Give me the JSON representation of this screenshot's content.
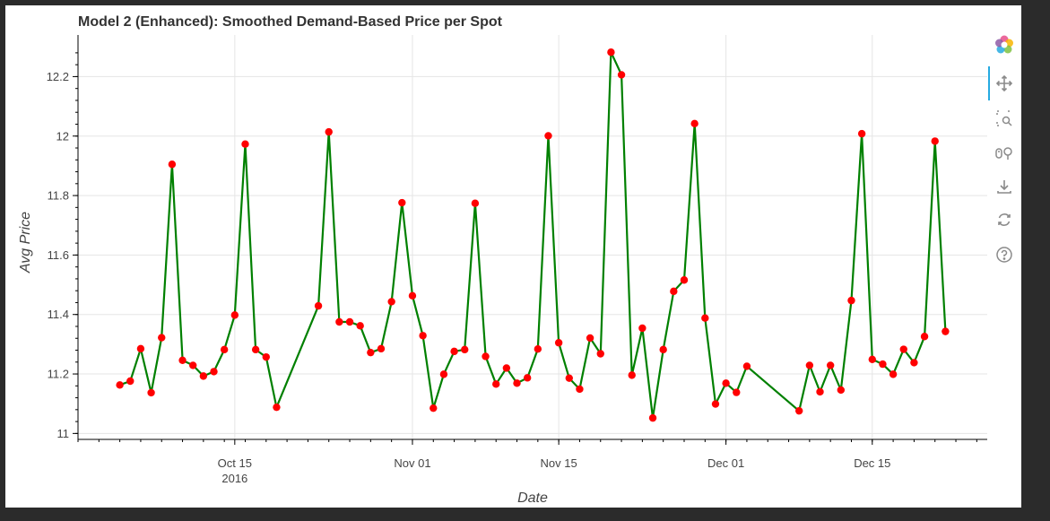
{
  "chart_data": {
    "type": "line",
    "title": "Model 2 (Enhanced): Smoothed Demand-Based Price per Spot",
    "xlabel": "Date",
    "ylabel": "Avg Price",
    "x_axis_type": "datetime",
    "xlim": [
      "2016-09-30",
      "2016-12-26"
    ],
    "ylim": [
      10.98,
      12.34
    ],
    "x_ticks": [
      {
        "date": "2016-10-15",
        "label": "Oct 15",
        "sublabel": "2016"
      },
      {
        "date": "2016-11-01",
        "label": "Nov 01",
        "sublabel": ""
      },
      {
        "date": "2016-11-15",
        "label": "Nov 15",
        "sublabel": ""
      },
      {
        "date": "2016-12-01",
        "label": "Dec 01",
        "sublabel": ""
      },
      {
        "date": "2016-12-15",
        "label": "Dec 15",
        "sublabel": ""
      }
    ],
    "y_ticks": [
      {
        "value": 11,
        "label": "11"
      },
      {
        "value": 11.2,
        "label": "11.2"
      },
      {
        "value": 11.4,
        "label": "11.4"
      },
      {
        "value": 11.6,
        "label": "11.6"
      },
      {
        "value": 11.8,
        "label": "11.8"
      },
      {
        "value": 12,
        "label": "12"
      },
      {
        "value": 12.2,
        "label": "12.2"
      }
    ],
    "grid": true,
    "line_color": "#008000",
    "marker_color": "#ff0000",
    "series": [
      {
        "points": [
          [
            "2016-10-04",
            11.163
          ],
          [
            "2016-10-05",
            11.176
          ],
          [
            "2016-10-06",
            11.285
          ],
          [
            "2016-10-07",
            11.137
          ],
          [
            "2016-10-08",
            11.322
          ],
          [
            "2016-10-09",
            11.905
          ],
          [
            "2016-10-10",
            11.246
          ],
          [
            "2016-10-11",
            11.229
          ],
          [
            "2016-10-12",
            11.193
          ],
          [
            "2016-10-13",
            11.208
          ],
          [
            "2016-10-14",
            11.282
          ],
          [
            "2016-10-15",
            11.398
          ],
          [
            "2016-10-16",
            11.973
          ],
          [
            "2016-10-17",
            11.282
          ],
          [
            "2016-10-18",
            11.257
          ],
          [
            "2016-10-19",
            11.088
          ],
          [
            "2016-10-23",
            11.429
          ],
          [
            "2016-10-24",
            12.014
          ],
          [
            "2016-10-25",
            11.375
          ],
          [
            "2016-10-26",
            11.375
          ],
          [
            "2016-10-27",
            11.362
          ],
          [
            "2016-10-28",
            11.272
          ],
          [
            "2016-10-29",
            11.285
          ],
          [
            "2016-10-30",
            11.443
          ],
          [
            "2016-10-31",
            11.776
          ],
          [
            "2016-11-01",
            11.463
          ],
          [
            "2016-11-02",
            11.329
          ],
          [
            "2016-11-03",
            11.085
          ],
          [
            "2016-11-04",
            11.199
          ],
          [
            "2016-11-05",
            11.276
          ],
          [
            "2016-11-06",
            11.282
          ],
          [
            "2016-11-07",
            11.774
          ],
          [
            "2016-11-08",
            11.259
          ],
          [
            "2016-11-09",
            11.166
          ],
          [
            "2016-11-10",
            11.22
          ],
          [
            "2016-11-11",
            11.169
          ],
          [
            "2016-11-12",
            11.187
          ],
          [
            "2016-11-13",
            11.284
          ],
          [
            "2016-11-14",
            12.001
          ],
          [
            "2016-11-15",
            11.305
          ],
          [
            "2016-11-16",
            11.186
          ],
          [
            "2016-11-17",
            11.149
          ],
          [
            "2016-11-18",
            11.321
          ],
          [
            "2016-11-19",
            11.268
          ],
          [
            "2016-11-20",
            12.282
          ],
          [
            "2016-11-21",
            12.206
          ],
          [
            "2016-11-22",
            11.196
          ],
          [
            "2016-11-23",
            11.354
          ],
          [
            "2016-11-24",
            11.052
          ],
          [
            "2016-11-25",
            11.282
          ],
          [
            "2016-11-26",
            11.478
          ],
          [
            "2016-11-27",
            11.516
          ],
          [
            "2016-11-28",
            12.042
          ],
          [
            "2016-11-29",
            11.388
          ],
          [
            "2016-11-30",
            11.099
          ],
          [
            "2016-12-01",
            11.169
          ],
          [
            "2016-12-02",
            11.138
          ],
          [
            "2016-12-03",
            11.226
          ],
          [
            "2016-12-08",
            11.076
          ],
          [
            "2016-12-09",
            11.229
          ],
          [
            "2016-12-10",
            11.14
          ],
          [
            "2016-12-11",
            11.229
          ],
          [
            "2016-12-12",
            11.146
          ],
          [
            "2016-12-13",
            11.447
          ],
          [
            "2016-12-14",
            12.008
          ],
          [
            "2016-12-15",
            11.249
          ],
          [
            "2016-12-16",
            11.233
          ],
          [
            "2016-12-17",
            11.199
          ],
          [
            "2016-12-18",
            11.283
          ],
          [
            "2016-12-19",
            11.238
          ],
          [
            "2016-12-20",
            11.326
          ],
          [
            "2016-12-21",
            11.983
          ],
          [
            "2016-12-22",
            11.343
          ]
        ]
      }
    ]
  },
  "toolbar": {
    "tools": [
      {
        "name": "bokeh-logo-icon",
        "interactive": true
      },
      {
        "name": "pan-icon",
        "interactive": true,
        "active": true
      },
      {
        "name": "box-zoom-icon",
        "interactive": true
      },
      {
        "name": "wheel-zoom-icon",
        "interactive": true
      },
      {
        "name": "save-icon",
        "interactive": true
      },
      {
        "name": "reset-icon",
        "interactive": true
      },
      {
        "name": "help-icon",
        "interactive": true
      }
    ]
  }
}
